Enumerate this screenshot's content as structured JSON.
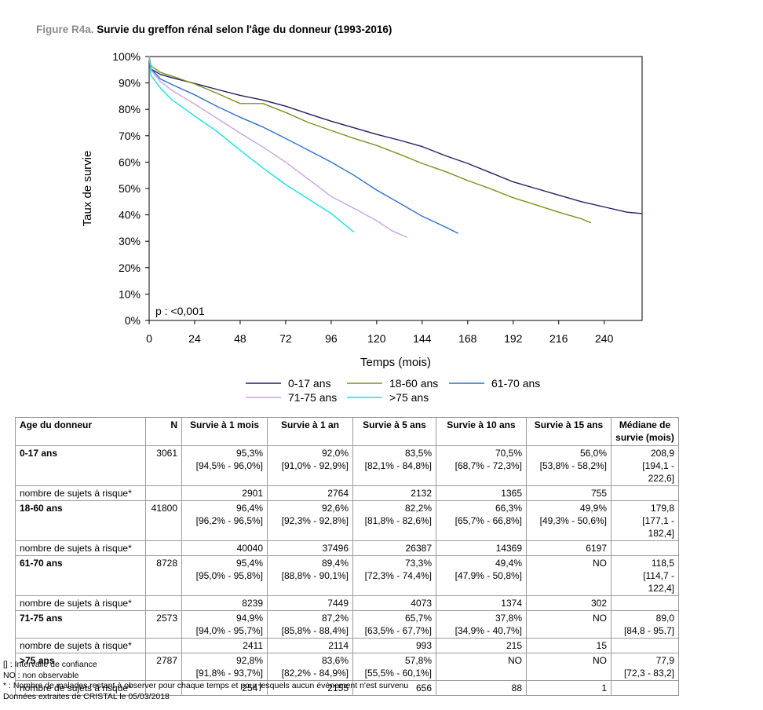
{
  "figure": {
    "label": "Figure R4a.",
    "title": "Survie du greffon rénal selon l'âge du donneur (1993-2016)"
  },
  "chart_data": {
    "type": "line",
    "xlabel": "Temps (mois)",
    "ylabel": "Taux de survie",
    "xlim": [
      0,
      260
    ],
    "ylim": [
      0,
      100
    ],
    "x_ticks": [
      0,
      24,
      48,
      72,
      96,
      120,
      144,
      168,
      192,
      216,
      240
    ],
    "y_ticks": [
      "0%",
      "10%",
      "20%",
      "30%",
      "40%",
      "50%",
      "60%",
      "70%",
      "80%",
      "90%",
      "100%"
    ],
    "annotation": "p : <0,001",
    "legend_position": "bottom",
    "series": [
      {
        "name": "0-17 ans",
        "color": "#1f1f66",
        "x": [
          0,
          1,
          6,
          12,
          24,
          36,
          48,
          60,
          72,
          84,
          96,
          108,
          120,
          132,
          144,
          156,
          168,
          180,
          192,
          204,
          216,
          228,
          240,
          252,
          260
        ],
        "y": [
          100,
          95.3,
          93.2,
          92.0,
          89.8,
          87.5,
          85.3,
          83.5,
          81.2,
          78.3,
          75.5,
          73.0,
          70.5,
          68.3,
          65.9,
          62.5,
          59.5,
          56.0,
          52.5,
          50.0,
          47.5,
          45.0,
          43.0,
          41.0,
          40.5
        ]
      },
      {
        "name": "18-60 ans",
        "color": "#7f8f1f",
        "x": [
          0,
          1,
          6,
          12,
          24,
          36,
          48,
          60,
          72,
          84,
          96,
          108,
          120,
          132,
          144,
          156,
          168,
          180,
          192,
          204,
          216,
          228,
          233
        ],
        "y": [
          100,
          96.4,
          94.0,
          92.6,
          89.6,
          86.0,
          82.2,
          82.2,
          78.8,
          75.0,
          72.0,
          69.0,
          66.3,
          63.0,
          59.5,
          56.5,
          53.0,
          49.9,
          46.5,
          43.8,
          41.0,
          38.5,
          37.0
        ]
      },
      {
        "name": "61-70 ans",
        "color": "#2e6fcf",
        "x": [
          0,
          1,
          6,
          12,
          24,
          36,
          48,
          60,
          72,
          84,
          96,
          108,
          120,
          132,
          144,
          156,
          163
        ],
        "y": [
          100,
          95.4,
          91.5,
          89.4,
          85.5,
          81.0,
          77.0,
          73.3,
          69.0,
          64.5,
          60.0,
          55.0,
          49.4,
          44.5,
          39.5,
          35.5,
          33.0
        ]
      },
      {
        "name": "71-75 ans",
        "color": "#c7a6e0",
        "x": [
          0,
          1,
          6,
          12,
          24,
          36,
          48,
          60,
          72,
          84,
          96,
          108,
          120,
          128,
          136
        ],
        "y": [
          100,
          94.9,
          90.5,
          87.2,
          82.0,
          76.5,
          71.0,
          65.7,
          60.0,
          53.5,
          47.0,
          42.5,
          37.8,
          34.0,
          31.5
        ]
      },
      {
        "name": ">75 ans",
        "color": "#18e0e8",
        "x": [
          0,
          1,
          6,
          12,
          24,
          36,
          48,
          60,
          72,
          84,
          96,
          108
        ],
        "y": [
          100,
          92.8,
          88.0,
          83.6,
          77.5,
          71.5,
          64.5,
          57.8,
          51.5,
          46.0,
          40.5,
          33.5
        ]
      }
    ]
  },
  "table": {
    "headers": [
      "Age du donneur",
      "N",
      "Survie à 1 mois",
      "Survie à 1 an",
      "Survie à 5 ans",
      "Survie à 10 ans",
      "Survie à 15 ans",
      "Médiane de survie (mois)"
    ],
    "groups": [
      {
        "label": "0-17 ans",
        "n": "3061",
        "values": [
          "95,3%",
          "92,0%",
          "83,5%",
          "70,5%",
          "56,0%",
          "208,9"
        ],
        "ci": [
          "[94,5% - 96,0%]",
          "[91,0% - 92,9%]",
          "[82,1% - 84,8%]",
          "[68,7% - 72,3%]",
          "[53,8% - 58,2%]",
          "[194,1 - 222,6]"
        ],
        "risk_label": "nombre de sujets à risque*",
        "risk": [
          "2901",
          "2764",
          "2132",
          "1365",
          "755",
          ""
        ]
      },
      {
        "label": "18-60 ans",
        "n": "41800",
        "values": [
          "96,4%",
          "92,6%",
          "82,2%",
          "66,3%",
          "49,9%",
          "179,8"
        ],
        "ci": [
          "[96,2% - 96,5%]",
          "[92,3% - 92,8%]",
          "[81,8% - 82,6%]",
          "[65,7% - 66,8%]",
          "[49,3% - 50,6%]",
          "[177,1 - 182,4]"
        ],
        "risk_label": "nombre de sujets à risque*",
        "risk": [
          "40040",
          "37496",
          "26387",
          "14369",
          "6197",
          ""
        ]
      },
      {
        "label": "61-70 ans",
        "n": "8728",
        "values": [
          "95,4%",
          "89,4%",
          "73,3%",
          "49,4%",
          "NO",
          "118,5"
        ],
        "ci": [
          "[95,0% - 95,8%]",
          "[88,8% - 90,1%]",
          "[72,3% - 74,4%]",
          "[47,9% - 50,8%]",
          "",
          "[114,7 - 122,4]"
        ],
        "risk_label": "nombre de sujets à risque*",
        "risk": [
          "8239",
          "7449",
          "4073",
          "1374",
          "302",
          ""
        ]
      },
      {
        "label": "71-75 ans",
        "n": "2573",
        "values": [
          "94,9%",
          "87,2%",
          "65,7%",
          "37,8%",
          "NO",
          "89,0"
        ],
        "ci": [
          "[94,0% - 95,7%]",
          "[85,8% - 88,4%]",
          "[63,5% - 67,7%]",
          "[34,9% - 40,7%]",
          "",
          "[84,8 - 95,7]"
        ],
        "risk_label": "nombre de sujets à risque*",
        "risk": [
          "2411",
          "2114",
          "993",
          "215",
          "15",
          ""
        ]
      },
      {
        "label": ">75 ans",
        "n": "2787",
        "values": [
          "92,8%",
          "83,6%",
          "57,8%",
          "NO",
          "NO",
          "77,9"
        ],
        "ci": [
          "[91,8% - 93,7%]",
          "[82,2% - 84,9%]",
          "[55,5% - 60,1%]",
          "",
          "",
          "[72,3 - 83,2]"
        ],
        "risk_label": "nombre de sujets à risque*",
        "risk": [
          "2547",
          "2155",
          "656",
          "88",
          "1",
          ""
        ]
      }
    ]
  },
  "notes": [
    "[] : Intervalle de confiance",
    "NO : non observable",
    "* : Nombre de malades restant à observer pour chaque temps et pour lesquels aucun évènement n'est survenu",
    "Données extraites de CRISTAL le 05/03/2018"
  ]
}
